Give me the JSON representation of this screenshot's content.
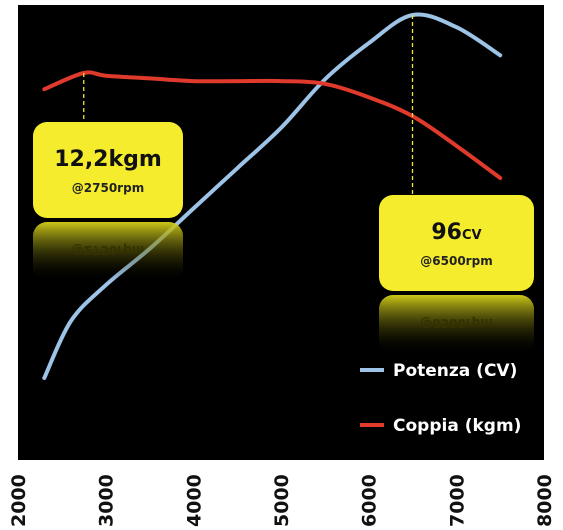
{
  "chart_data": {
    "type": "line",
    "title": "",
    "xlabel": "",
    "ylabel": "",
    "xlim": [
      2000,
      8000
    ],
    "x_ticks": [
      "2000",
      "3000",
      "4000",
      "5000",
      "6000",
      "7000",
      "8000"
    ],
    "grid": false,
    "legend_position": "bottom-right",
    "background_color": "#000000",
    "series": [
      {
        "name": "Potenza (CV)",
        "color": "#9dc3e6",
        "axis": "left",
        "x": [
          2300,
          2600,
          3000,
          3500,
          4000,
          4500,
          5000,
          5500,
          6000,
          6500,
          7000,
          7500
        ],
        "y": [
          6,
          20,
          29,
          38,
          48,
          58,
          68,
          80,
          89,
          96,
          93,
          86
        ]
      },
      {
        "name": "Coppia (kgm)",
        "color": "#e03a2c",
        "axis": "right",
        "x": [
          2300,
          2750,
          3000,
          3500,
          4000,
          4500,
          5000,
          5500,
          6000,
          6500,
          7000,
          7500
        ],
        "y": [
          11.6,
          12.2,
          12.1,
          12.0,
          11.9,
          11.9,
          11.9,
          11.8,
          11.3,
          10.6,
          9.5,
          8.3
        ]
      }
    ],
    "annotations": [
      {
        "series": "Coppia (kgm)",
        "x": 2750,
        "value": "12,2",
        "unit": "kgm",
        "sub": "@2750rpm",
        "reflection": "@2750rpm"
      },
      {
        "series": "Potenza (CV)",
        "x": 6500,
        "value": "96",
        "unit": "CV",
        "sub": "@6500rpm",
        "reflection": "@6500rpm"
      }
    ],
    "y_left_range": [
      0,
      100
    ],
    "y_right_range": [
      0,
      13.5
    ]
  }
}
